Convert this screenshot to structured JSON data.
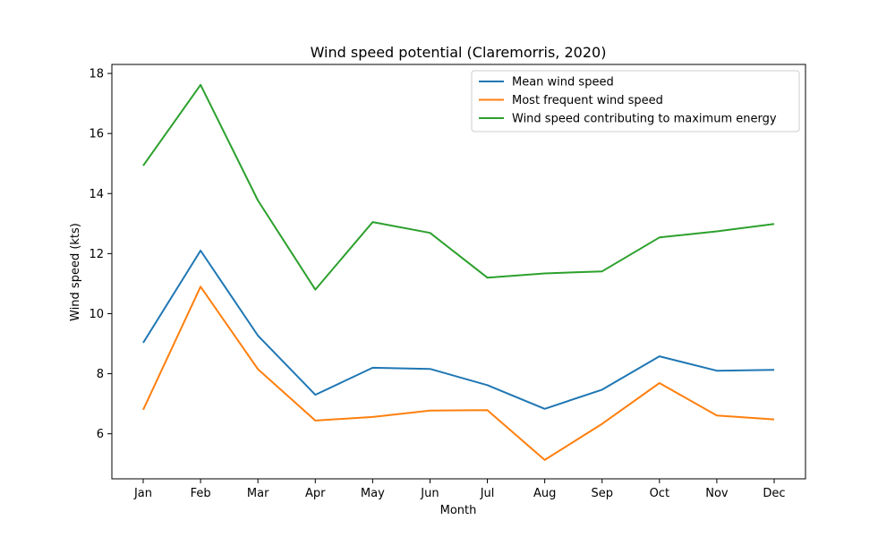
{
  "chart_data": {
    "type": "line",
    "title": "Wind speed potential (Claremorris, 2020)",
    "xlabel": "Month",
    "ylabel": "Wind speed (kts)",
    "categories": [
      "Jan",
      "Feb",
      "Mar",
      "Apr",
      "May",
      "Jun",
      "Jul",
      "Aug",
      "Sep",
      "Oct",
      "Nov",
      "Dec"
    ],
    "ylim": [
      4.5,
      18.3
    ],
    "yticks": [
      6,
      8,
      10,
      12,
      14,
      16,
      18
    ],
    "grid": false,
    "legend_position": "top-right",
    "series": [
      {
        "name": "Mean wind speed",
        "color": "#1f77b4",
        "values": [
          9.03,
          12.1,
          9.27,
          7.3,
          8.2,
          8.16,
          7.62,
          6.83,
          7.47,
          8.58,
          8.1,
          8.13
        ]
      },
      {
        "name": "Most frequent wind speed",
        "color": "#ff7f0e",
        "values": [
          6.8,
          10.9,
          8.15,
          6.44,
          6.56,
          6.77,
          6.79,
          5.13,
          6.33,
          7.69,
          6.61,
          6.48
        ]
      },
      {
        "name": "Wind speed contributing to maximum energy",
        "color": "#2ca02c",
        "values": [
          14.93,
          17.62,
          13.77,
          10.8,
          13.05,
          12.69,
          11.2,
          11.34,
          11.41,
          12.54,
          12.74,
          12.99
        ]
      }
    ]
  }
}
